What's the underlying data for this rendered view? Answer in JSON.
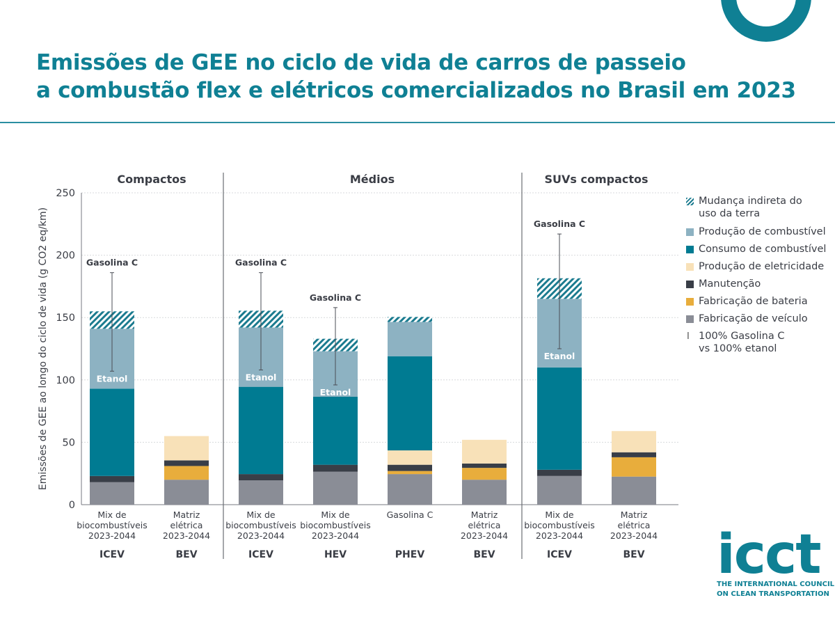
{
  "title": {
    "line1": "Emissões de GEE no ciclo de vida de carros de passeio",
    "line2": "a combustão flex e elétricos comercializados no Brasil em 2023"
  },
  "logo": {
    "word": "icct",
    "line1": "THE INTERNATIONAL COUNCIL",
    "line2": "ON CLEAN TRANSPORTATION"
  },
  "colors": {
    "title": "#0f8094",
    "luc": "#1b7b8f",
    "fuel_production": "#8db2c2",
    "fuel_consumption": "#007b92",
    "electricity_production": "#f8e1b8",
    "maintenance": "#393e47",
    "battery_manufacturing": "#e8ad3c",
    "vehicle_manufacturing": "#8a8d96"
  },
  "chart_data": {
    "type": "bar",
    "stacked": true,
    "ylabel": "Emissões de GEE ao longo do ciclo de vida (g CO2 eq/km)",
    "ylim": [
      0,
      250
    ],
    "yticks": [
      0,
      50,
      100,
      150,
      200,
      250
    ],
    "grid": true,
    "legend_position": "right",
    "groups": [
      {
        "name": "Compactos",
        "categories": [
          0,
          1
        ]
      },
      {
        "name": "Médios",
        "categories": [
          2,
          3,
          4,
          5
        ]
      },
      {
        "name": "SUVs compactos",
        "categories": [
          6,
          7
        ]
      }
    ],
    "categories": [
      {
        "label": [
          "Mix de",
          "biocombustíveis",
          "2023-2044"
        ],
        "type": "ICEV"
      },
      {
        "label": [
          "Matriz",
          "elétrica",
          "2023-2044"
        ],
        "type": "BEV"
      },
      {
        "label": [
          "Mix de",
          "biocombustíveis",
          "2023-2044"
        ],
        "type": "ICEV"
      },
      {
        "label": [
          "Mix de",
          "biocombustíveis",
          "2023-2044"
        ],
        "type": "HEV"
      },
      {
        "label": [
          "Gasolina C"
        ],
        "type": "PHEV"
      },
      {
        "label": [
          "Matriz",
          "elétrica",
          "2023-2044"
        ],
        "type": "BEV"
      },
      {
        "label": [
          "Mix de",
          "biocombustíveis",
          "2023-2044"
        ],
        "type": "ICEV"
      },
      {
        "label": [
          "Matriz",
          "elétrica",
          "2023-2044"
        ],
        "type": "BEV"
      }
    ],
    "series": [
      {
        "name": "Fabricação de veículo",
        "color": "#8a8d96",
        "values": [
          18,
          20,
          19.5,
          26.5,
          24.5,
          20,
          23,
          22.5
        ]
      },
      {
        "name": "Fabricação de bateria",
        "color": "#e8ad3c",
        "values": [
          0,
          11,
          0,
          0,
          2.5,
          9.5,
          0,
          15.5
        ]
      },
      {
        "name": "Manutenção",
        "color": "#393e47",
        "values": [
          5,
          4.5,
          5,
          5.5,
          5,
          3.5,
          5,
          4
        ]
      },
      {
        "name": "Produção de eletricidade",
        "color": "#f8e1b8",
        "values": [
          0,
          19.5,
          0,
          0,
          11.5,
          19,
          0,
          17
        ]
      },
      {
        "name": "Consumo de combustível",
        "color": "#007b92",
        "values": [
          70,
          0,
          70,
          54.5,
          75.5,
          0,
          82,
          0
        ]
      },
      {
        "name": "Produção de combustível",
        "color": "#8db2c2",
        "values": [
          48,
          0,
          47.5,
          36.5,
          27.5,
          0,
          55,
          0
        ]
      },
      {
        "name": "Mudança indireta do uso da terra",
        "color": "#1b7b8f",
        "pattern": "hatch",
        "values": [
          14,
          0,
          13.5,
          10,
          4,
          0,
          16.5,
          0
        ]
      }
    ],
    "error_bars": [
      {
        "index": 0,
        "low": 107,
        "high": 186,
        "high_label": "Gasolina C",
        "low_label": "Etanol"
      },
      {
        "index": 2,
        "low": 108,
        "high": 186,
        "high_label": "Gasolina C",
        "low_label": "Etanol"
      },
      {
        "index": 3,
        "low": 96,
        "high": 158,
        "high_label": "Gasolina C",
        "low_label": "Etanol"
      },
      {
        "index": 6,
        "low": 125,
        "high": 217,
        "high_label": "Gasolina C",
        "low_label": "Etanol"
      }
    ],
    "legend": [
      {
        "label": [
          "Mudança indireta do",
          "uso da terra"
        ],
        "key": "luc"
      },
      {
        "label": [
          "Produção de combustível"
        ],
        "key": "fuel_production"
      },
      {
        "label": [
          "Consumo de combustível"
        ],
        "key": "fuel_consumption"
      },
      {
        "label": [
          "Produção de eletricidade"
        ],
        "key": "electricity_production"
      },
      {
        "label": [
          "Manutenção"
        ],
        "key": "maintenance"
      },
      {
        "label": [
          "Fabricação de bateria"
        ],
        "key": "battery_manufacturing"
      },
      {
        "label": [
          "Fabricação de veículo"
        ],
        "key": "vehicle_manufacturing"
      },
      {
        "label": [
          "100% Gasolina C",
          "vs 100% etanol"
        ],
        "key": "errorbar"
      }
    ]
  }
}
